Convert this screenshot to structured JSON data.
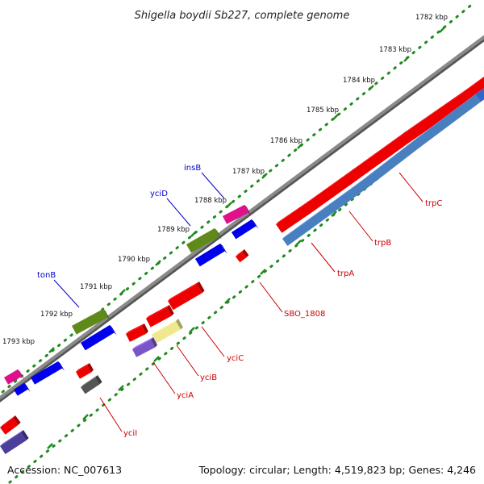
{
  "title": "Shigella boydii Sb227, complete genome",
  "footer": {
    "accession": "Accession: NC_007613",
    "summary": "Topology: circular; Length: 4,519,823 bp; Genes: 4,246"
  },
  "colors": {
    "backbone": "#8a8a8a",
    "ruler": "#1f8a1f",
    "label_red": "#cc0000",
    "label_blue": "#0000cc"
  },
  "ticks": [
    {
      "label": "1782 kbp"
    },
    {
      "label": "1783 kbp"
    },
    {
      "label": "1784 kbp"
    },
    {
      "label": "1785 kbp"
    },
    {
      "label": "1786 kbp"
    },
    {
      "label": "1787 kbp"
    },
    {
      "label": "1788 kbp"
    },
    {
      "label": "1789 kbp"
    },
    {
      "label": "1790 kbp"
    },
    {
      "label": "1791 kbp"
    },
    {
      "label": "1792 kbp"
    },
    {
      "label": "1793 kbp"
    }
  ],
  "top_labels": [
    {
      "name": "insB",
      "color": "#0000cc"
    },
    {
      "name": "yciD",
      "color": "#0000cc"
    },
    {
      "name": "tonB",
      "color": "#0000cc"
    }
  ],
  "bottom_labels": [
    {
      "name": "trpC",
      "color": "#cc0000"
    },
    {
      "name": "trpB",
      "color": "#cc0000"
    },
    {
      "name": "trpA",
      "color": "#cc0000"
    },
    {
      "name": "SBO_1808",
      "color": "#cc0000"
    },
    {
      "name": "yciC",
      "color": "#cc0000"
    },
    {
      "name": "yciB",
      "color": "#cc0000"
    },
    {
      "name": "yciA",
      "color": "#cc0000"
    },
    {
      "name": "yciI",
      "color": "#cc0000"
    }
  ]
}
